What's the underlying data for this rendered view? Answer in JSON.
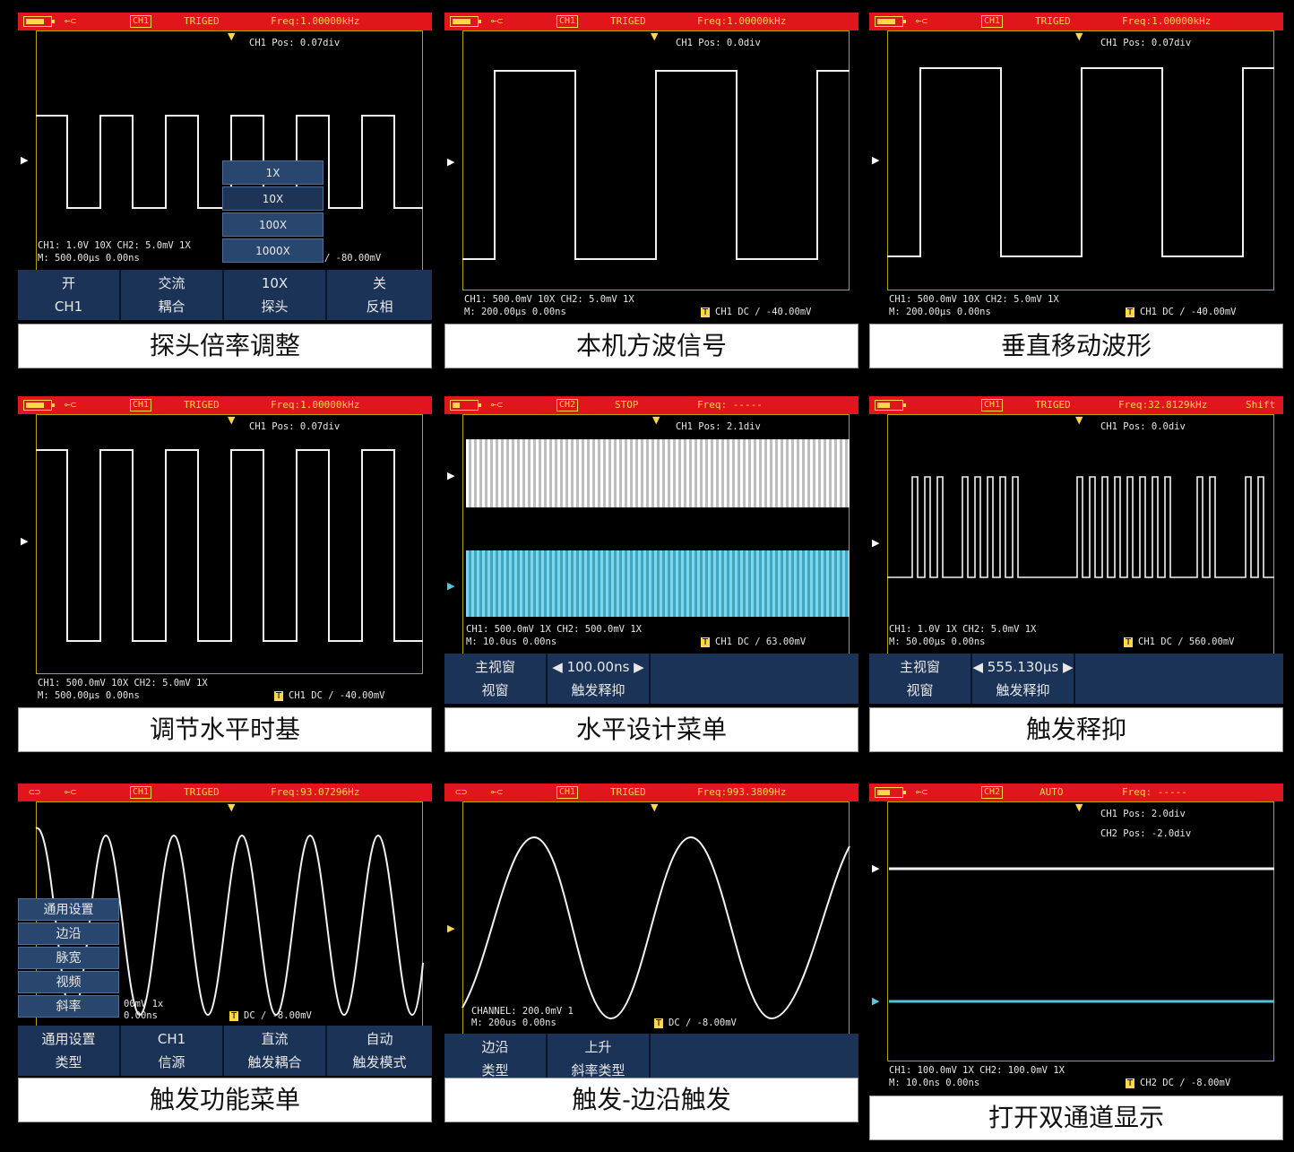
{
  "panels": [
    {
      "caption": "探头倍率调整",
      "status": "TRIGED",
      "freq": "Freq:1.00000kHz",
      "ch_tag": "CH1",
      "pos": "CH1 Pos: 0.07div",
      "info_line1": "CH1: 1.0V  10X  CH2: 5.0mV 1X",
      "info_line2": "M: 500.00μs        0.00ns",
      "trigger": "/ -80.00mV",
      "popup": [
        "1X",
        "10X",
        "100X",
        "1000X"
      ],
      "menu": [
        {
          "top": "开",
          "bottom": "CH1"
        },
        {
          "top": "交流",
          "bottom": "耦合"
        },
        {
          "top": "10X",
          "bottom": "探头"
        },
        {
          "top": "关",
          "bottom": "反相"
        }
      ]
    },
    {
      "caption": "本机方波信号",
      "status": "TRIGED",
      "freq": "Freq:1.00000kHz",
      "ch_tag": "CH1",
      "pos": "CH1 Pos: 0.0div",
      "info_line1": "CH1: 500.0mV 10X  CH2: 5.0mV 1X",
      "info_line2": "M: 200.00μs        0.00ns",
      "trigger": "CH1 DC / -40.00mV"
    },
    {
      "caption": "垂直移动波形",
      "status": "TRIGED",
      "freq": "Freq:1.00000kHz",
      "ch_tag": "CH1",
      "pos": "CH1 Pos: 0.07div",
      "info_line1": "CH1: 500.0mV 10X  CH2: 5.0mV 1X",
      "info_line2": "M: 200.00μs        0.00ns",
      "trigger": "CH1 DC / -40.00mV"
    },
    {
      "caption": "调节水平时基",
      "status": "TRIGED",
      "freq": "Freq:1.00000kHz",
      "ch_tag": "CH1",
      "pos": "CH1 Pos: 0.07div",
      "info_line1": "CH1: 500.0mV 10X  CH2: 5.0mV 1X",
      "info_line2": "M: 500.00μs        0.00ns",
      "trigger": "CH1 DC / -40.00mV"
    },
    {
      "caption": "水平设计菜单",
      "status": "STOP",
      "freq": "Freq: -----",
      "ch_tag": "CH2",
      "pos": "CH1 Pos: 2.1div",
      "info_line1": "CH1: 500.0mV 1X  CH2: 500.0mV 1X",
      "info_line2": "M: 10.0us          0.00ns",
      "trigger": "CH1 DC / 63.00mV",
      "menu": [
        {
          "top": "主视窗",
          "bottom": "视窗"
        },
        {
          "top": "◀ 100.00ns ▶",
          "bottom": "触发释抑"
        }
      ]
    },
    {
      "caption": "触发释抑",
      "status": "TRIGED",
      "freq": "Freq:32.8129kHz",
      "ch_tag": "CH1",
      "extra": "Shift",
      "pos": "CH1 Pos: 0.0div",
      "info_line1": "CH1: 1.0V  1X  CH2: 5.0mV 1X",
      "info_line2": "M: 50.00μs         0.00ns",
      "trigger": "CH1 DC / 560.00mV",
      "menu": [
        {
          "top": "主视窗",
          "bottom": "视窗"
        },
        {
          "top": "◀ 555.130μs ▶",
          "bottom": "触发释抑"
        }
      ]
    },
    {
      "caption": "触发功能菜单",
      "status": "TRIGED",
      "freq": "Freq:93.07296Hz",
      "ch_tag": "CH1",
      "pos": "",
      "info_line1": "00mV 1x",
      "info_line2": "0.00ns",
      "trigger": "DC / -8.00mV",
      "side": [
        "通用设置",
        "边沿",
        "脉宽",
        "视频",
        "斜率"
      ],
      "menu": [
        {
          "top": "通用设置",
          "bottom": "类型"
        },
        {
          "top": "CH1",
          "bottom": "信源"
        },
        {
          "top": "直流",
          "bottom": "触发耦合"
        },
        {
          "top": "自动",
          "bottom": "触发模式"
        }
      ]
    },
    {
      "caption": "触发-边沿触发",
      "status": "TRIGED",
      "freq": "Freq:993.3809Hz",
      "ch_tag": "CH1",
      "pos": "",
      "info_line1": "CHANNEL: 200.0mV 1",
      "info_line2": "M: 200us     0.00ns",
      "trigger": "DC / -8.00mV",
      "menu": [
        {
          "top": "边沿",
          "bottom": "类型"
        },
        {
          "top": "上升",
          "bottom": "斜率类型"
        }
      ]
    },
    {
      "caption": "打开双通道显示",
      "status": "AUTO",
      "freq": "Freq: -----",
      "ch_tag": "CH2",
      "pos": "CH1 Pos: 2.0div",
      "pos2": "CH2 Pos: -2.0div",
      "info_line1": "CH1: 100.0mV 1X  CH2: 100.0mV 1X",
      "info_line2": "M: 10.0ns          0.00ns",
      "trigger": "CH2 DC / -8.00mV"
    }
  ]
}
